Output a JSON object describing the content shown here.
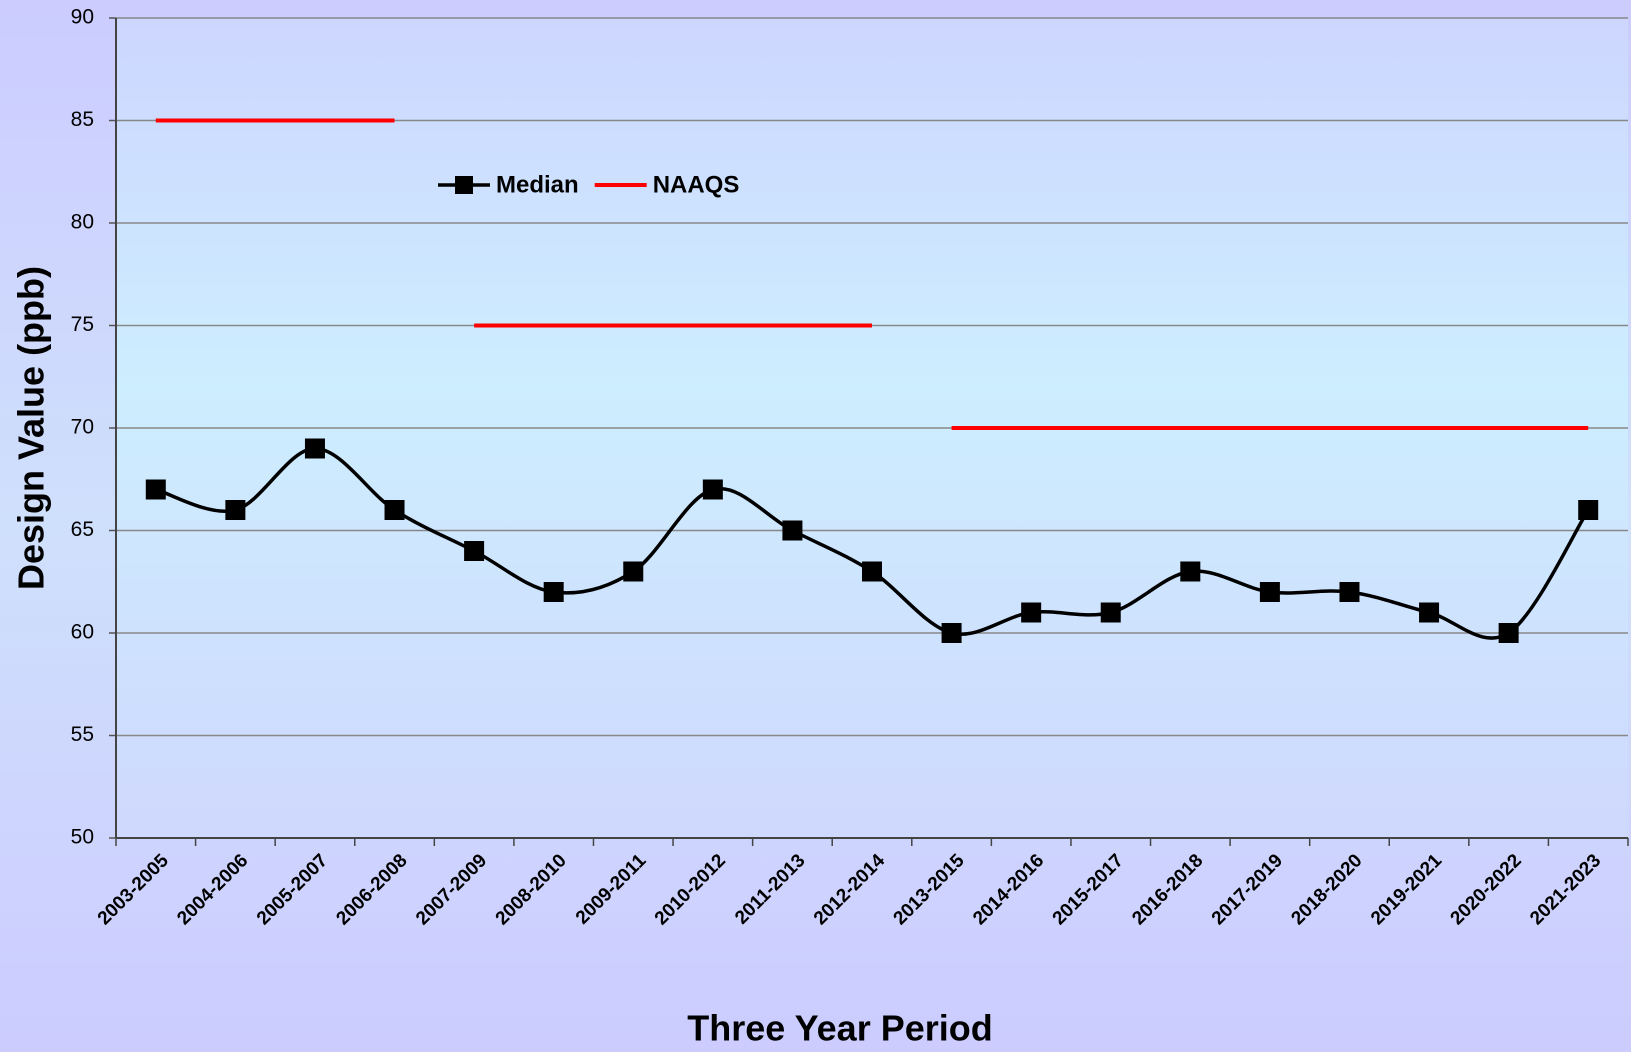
{
  "chart_data": {
    "type": "line",
    "x_label": "Three Year Period",
    "y_label": "Design Value (ppb)",
    "categories": [
      "2003-2005",
      "2004-2006",
      "2005-2007",
      "2006-2008",
      "2007-2009",
      "2008-2010",
      "2009-2011",
      "2010-2012",
      "2011-2013",
      "2012-2014",
      "2013-2015",
      "2014-2016",
      "2015-2017",
      "2016-2018",
      "2017-2019",
      "2018-2020",
      "2019-2021",
      "2020-2022",
      "2021-2023"
    ],
    "series": [
      {
        "name": "Median",
        "color": "#000000",
        "marker": "square",
        "smooth": true,
        "values": [
          67,
          66,
          69,
          66,
          64,
          62,
          63,
          67,
          65,
          63,
          60,
          61,
          61,
          63,
          62,
          62,
          61,
          60,
          66
        ]
      },
      {
        "name": "NAAQS",
        "color": "#ff0000",
        "marker": "none",
        "segments": "level",
        "values": [
          85,
          85,
          85,
          85,
          75,
          75,
          75,
          75,
          75,
          75,
          70,
          70,
          70,
          70,
          70,
          70,
          70,
          70,
          70
        ]
      }
    ],
    "ylim": [
      50,
      90
    ],
    "yticks": [
      50,
      55,
      60,
      65,
      70,
      75,
      80,
      85,
      90
    ],
    "grid": true
  }
}
